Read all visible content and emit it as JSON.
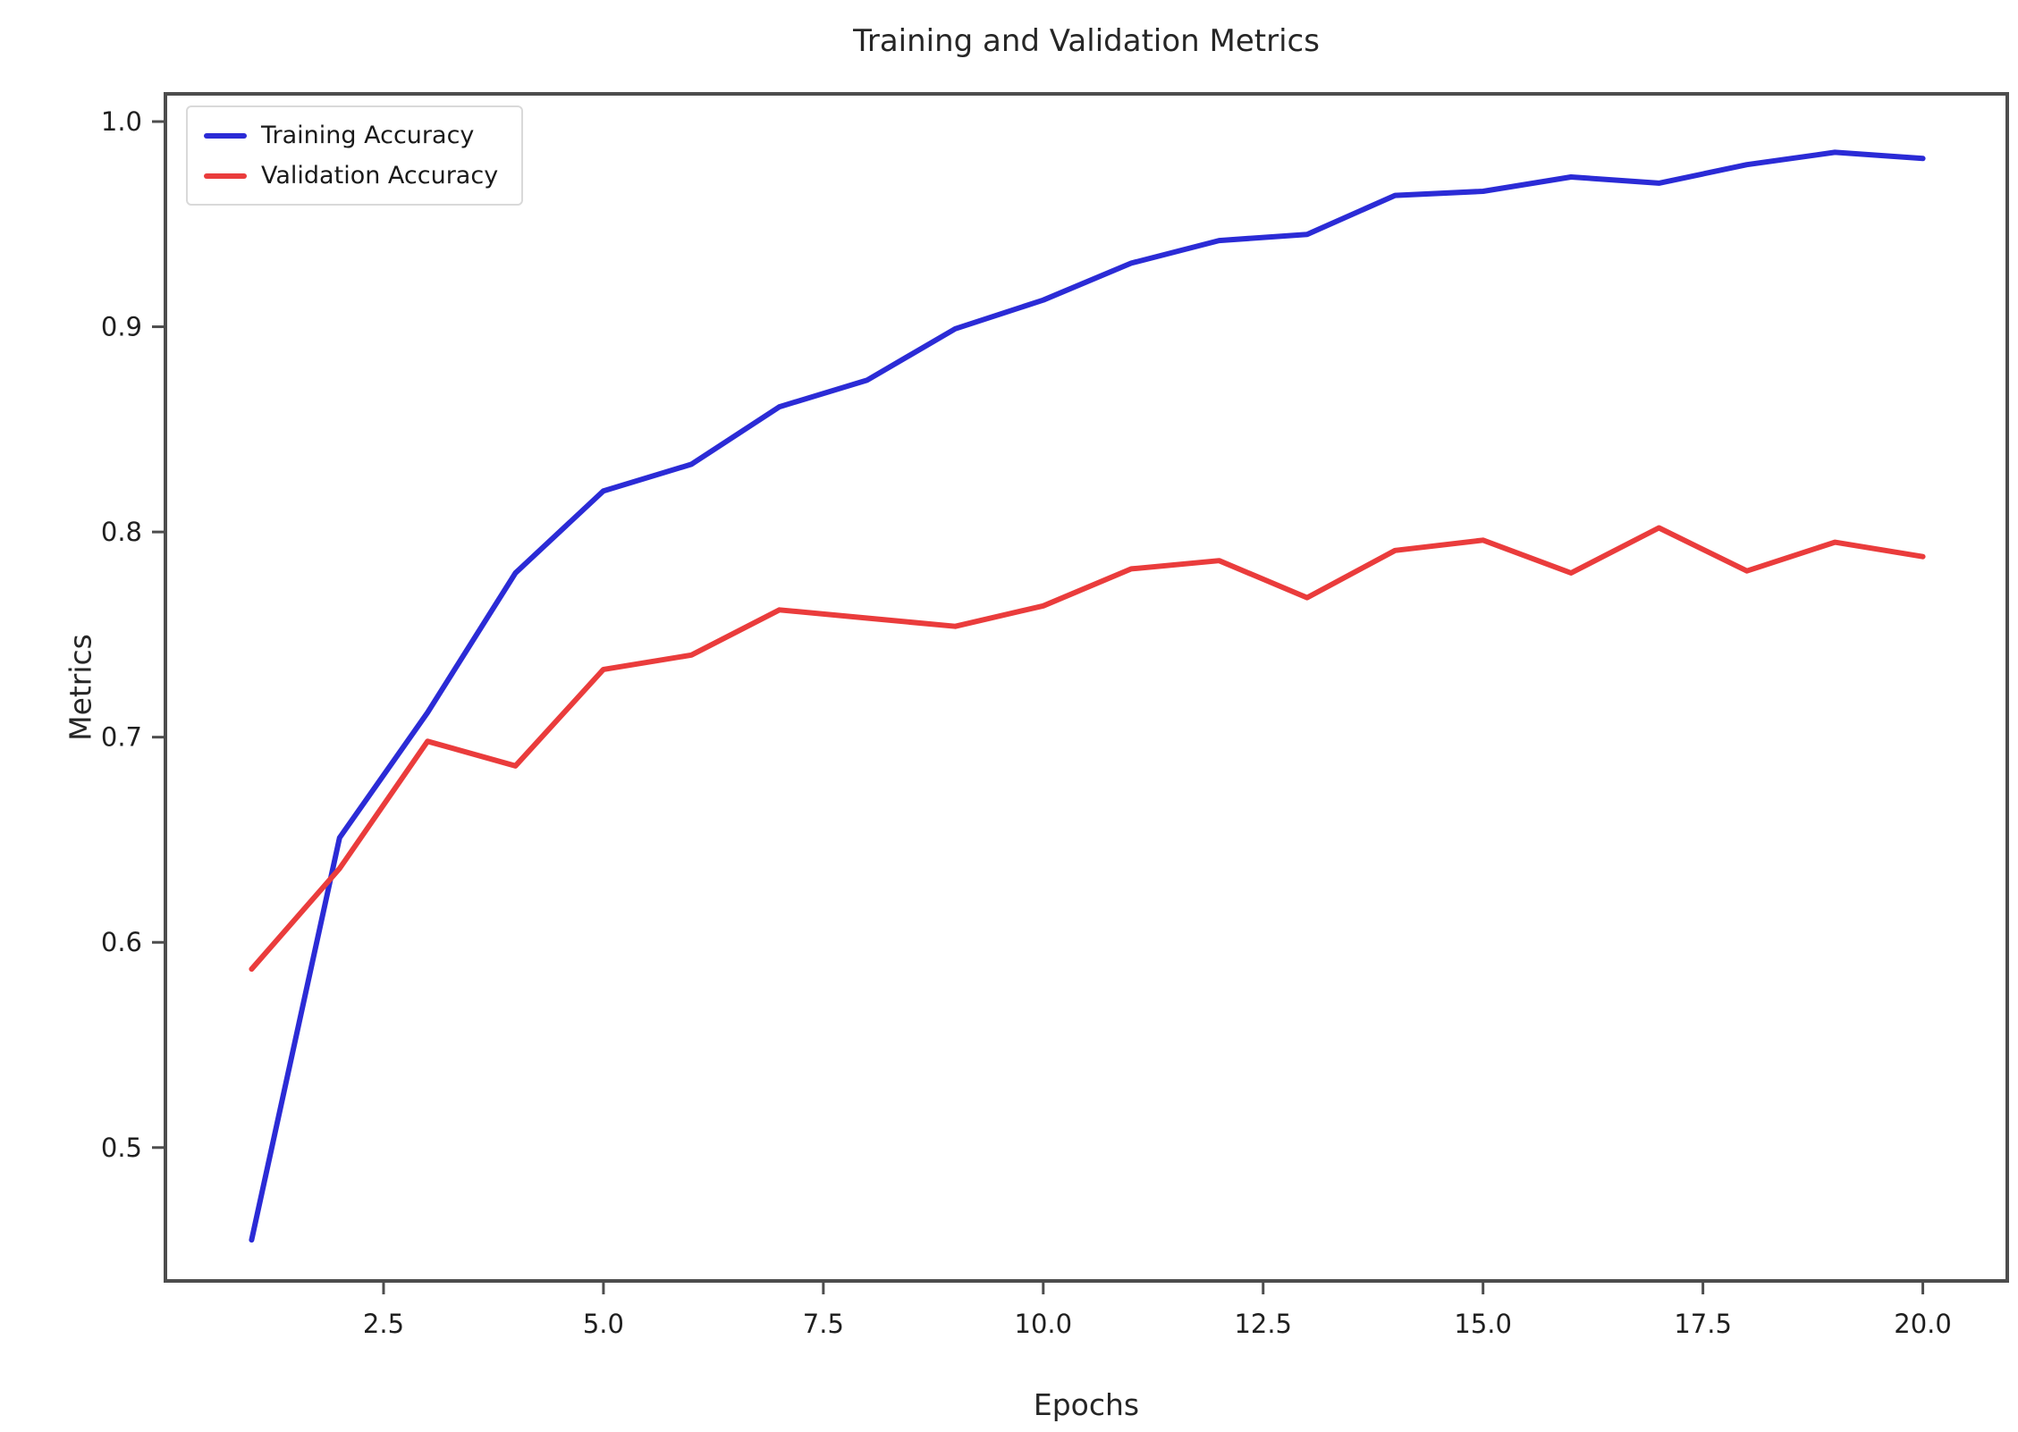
{
  "chart": {
    "title": "Training and Validation Metrics",
    "xlabel": "Epochs",
    "ylabel": "Metrics"
  },
  "chart_data": {
    "type": "line",
    "title": "Training and Validation Metrics",
    "xlabel": "Epochs",
    "ylabel": "Metrics",
    "x": [
      1,
      2,
      3,
      4,
      5,
      6,
      7,
      8,
      9,
      10,
      11,
      12,
      13,
      14,
      15,
      16,
      17,
      18,
      19,
      20
    ],
    "series": [
      {
        "name": "Training Accuracy",
        "color": "#2b2bd6",
        "values": [
          0.455,
          0.651,
          0.712,
          0.78,
          0.82,
          0.833,
          0.861,
          0.874,
          0.899,
          0.913,
          0.931,
          0.942,
          0.945,
          0.964,
          0.966,
          0.973,
          0.97,
          0.979,
          0.985,
          0.982
        ]
      },
      {
        "name": "Validation Accuracy",
        "color": "#ea3c3c",
        "values": [
          0.587,
          0.636,
          0.698,
          0.686,
          0.733,
          0.74,
          0.762,
          0.758,
          0.754,
          0.764,
          0.782,
          0.786,
          0.768,
          0.791,
          0.796,
          0.78,
          0.802,
          0.781,
          0.795,
          0.788
        ]
      }
    ],
    "xlim": [
      0.02,
      20.96
    ],
    "ylim": [
      0.435,
      1.0135
    ],
    "xticks": [
      2.5,
      5.0,
      7.5,
      10.0,
      12.5,
      15.0,
      17.5,
      20.0
    ],
    "xtick_labels": [
      "2.5",
      "5.0",
      "7.5",
      "10.0",
      "12.5",
      "15.0",
      "17.5",
      "20.0"
    ],
    "yticks": [
      0.5,
      0.6,
      0.7,
      0.8,
      0.9,
      1.0
    ],
    "ytick_labels": [
      "0.5",
      "0.6",
      "0.7",
      "0.8",
      "0.9",
      "1.0"
    ],
    "grid": false,
    "legend_position": "upper left",
    "axis_color": "#4d4d4d",
    "tick_label_color": "#1f1f1f"
  }
}
